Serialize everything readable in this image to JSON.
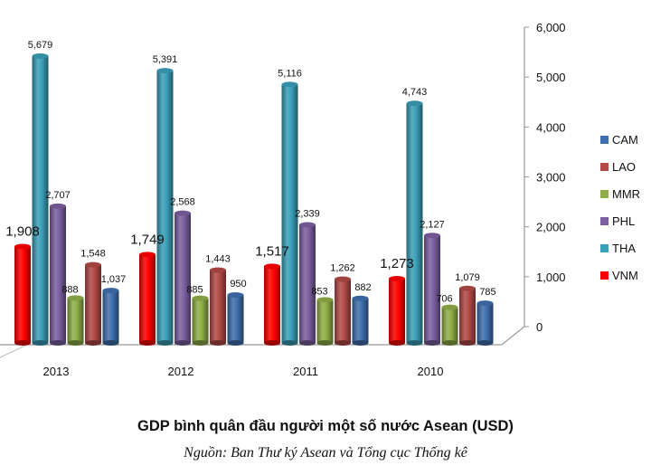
{
  "chart_data": {
    "type": "bar",
    "title": "GDP bình quân đầu người một số nước Asean (USD)",
    "source": "Nguồn: Ban Thư ký Asean và Tổng cục Thống kê",
    "categories": [
      "2013",
      "2012",
      "2011",
      "2010"
    ],
    "series": [
      {
        "name": "VNM",
        "color": "#ff0000",
        "values": [
          1908,
          1749,
          1517,
          1273
        ]
      },
      {
        "name": "THA",
        "color": "#3a9fb8",
        "values": [
          5679,
          5391,
          5116,
          4743
        ]
      },
      {
        "name": "PHL",
        "color": "#7b5fa0",
        "values": [
          2707,
          2568,
          2339,
          2127
        ]
      },
      {
        "name": "MMR",
        "color": "#8fae46",
        "values": [
          888,
          885,
          853,
          706
        ]
      },
      {
        "name": "LAO",
        "color": "#b24a47",
        "values": [
          1548,
          1443,
          1262,
          1079
        ]
      },
      {
        "name": "CAM",
        "color": "#3f6fae",
        "values": [
          1037,
          950,
          882,
          785
        ]
      }
    ],
    "data_labels": {
      "VNM": [
        "1,908",
        "1,749",
        "1,517",
        "1,273"
      ],
      "THA": [
        "5,679",
        "5,391",
        "5,116",
        "4,743"
      ],
      "PHL": [
        "2,707",
        "2,568",
        "2,339",
        "2,127"
      ],
      "MMR": [
        "888",
        "885",
        "853",
        "706"
      ],
      "LAO": [
        "1,548",
        "1,443",
        "1,262",
        "1,079"
      ],
      "CAM": [
        "1,037",
        "950",
        "882",
        "785"
      ]
    },
    "yaxis": {
      "position": "right",
      "ylim": [
        0,
        6000
      ],
      "ticks": [
        "0",
        "1,000",
        "2,000",
        "3,000",
        "4,000",
        "5,000",
        "6,000"
      ]
    },
    "legend": {
      "placement": "right",
      "order": [
        "CAM",
        "LAO",
        "MMR",
        "PHL",
        "THA",
        "VNM"
      ]
    },
    "grid": false,
    "style": "3d-cylinder"
  }
}
